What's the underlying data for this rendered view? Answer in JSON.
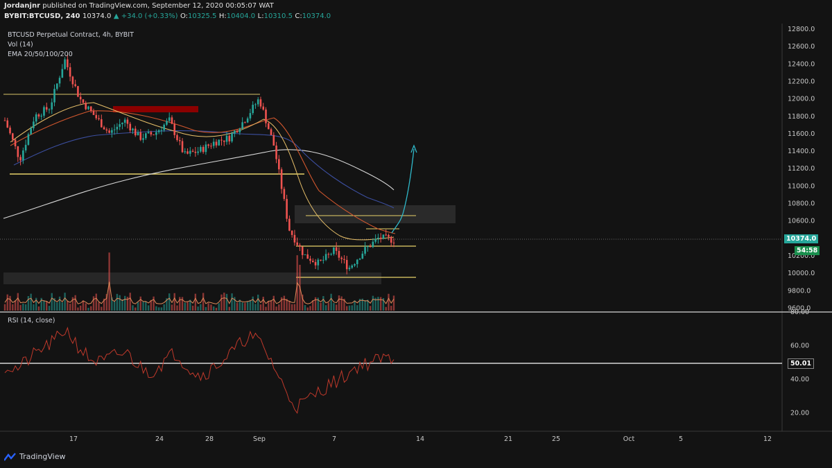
{
  "header": {
    "publisher": "Jordanjnr",
    "published_text": "published on TradingView.com, September 12, 2020 00:05:07 WAT",
    "symbol": "BYBIT:BTCUSD, 240",
    "last": "10374.0",
    "change": "▲ +34.0 (+0.33%)",
    "o_label": "O:",
    "o": "10325.5",
    "h_label": "H:",
    "h": "10404.0",
    "l_label": "L:",
    "l": "10310.5",
    "c_label": "C:",
    "c": "10374.0"
  },
  "legend": {
    "title": "BTCUSD Perpetual Contract, 4h, BYBIT",
    "vol": "Vol (14)",
    "ema": "EMA 20/50/100/200",
    "rsi": "RSI (14, close)"
  },
  "price_axis": {
    "ticks": [
      "12800.0",
      "12600.0",
      "12400.0",
      "12200.0",
      "12000.0",
      "11800.0",
      "11600.0",
      "11400.0",
      "11200.0",
      "11000.0",
      "10800.0",
      "10600.0",
      "10400.0",
      "10200.0",
      "10000.0",
      "9800.0",
      "9600.0"
    ],
    "last_price_tag": "10374.0",
    "countdown_tag": "54:58"
  },
  "rsi_axis": {
    "ticks": [
      "80.00",
      "60.00",
      "40.00",
      "20.00"
    ],
    "value_tag": "50.01"
  },
  "time_axis": {
    "ticks": [
      "17",
      "24",
      "28",
      "Sep",
      "7",
      "14",
      "21",
      "25",
      "Oct",
      "5",
      "12"
    ]
  },
  "footer": {
    "brand": "TradingView"
  },
  "colors": {
    "background": "#131313",
    "up": "#26a69a",
    "down": "#ef5350",
    "ema20": "#e8c06a",
    "ema50": "#d2572e",
    "ema100": "#3c4fa0",
    "ema200": "#d9d9d9",
    "zone_line": "#e8d36a",
    "supply_zone": "#8b0000",
    "projection": "#2fb8c9",
    "rsi_line": "#c0392b"
  },
  "chart_data": {
    "type": "candlestick",
    "symbol": "BYBIT:BTCUSD",
    "timeframe": "4h",
    "ylim": [
      9600,
      12800
    ],
    "rsi_ylim": [
      10,
      80
    ],
    "price_path": [
      [
        11750,
        "Aug 13"
      ],
      [
        11300,
        "Aug 14"
      ],
      [
        11800,
        "Aug 15"
      ],
      [
        11900,
        "Aug 16"
      ],
      [
        12450,
        "Aug 17"
      ],
      [
        12000,
        "Aug 18"
      ],
      [
        11800,
        "Aug 19"
      ],
      [
        11600,
        "Aug 20"
      ],
      [
        11750,
        "Aug 21"
      ],
      [
        11550,
        "Aug 22"
      ],
      [
        11600,
        "Aug 23"
      ],
      [
        11750,
        "Aug 24"
      ],
      [
        11350,
        "Aug 26"
      ],
      [
        11400,
        "Aug 27"
      ],
      [
        11500,
        "Aug 28"
      ],
      [
        11550,
        "Aug 30"
      ],
      [
        11750,
        "Aug 31"
      ],
      [
        12000,
        "Sep 1"
      ],
      [
        11450,
        "Sep 3"
      ],
      [
        10500,
        "Sep 4"
      ],
      [
        10200,
        "Sep 5"
      ],
      [
        10100,
        "Sep 6"
      ],
      [
        10250,
        "Sep 7"
      ],
      [
        10050,
        "Sep 8"
      ],
      [
        10250,
        "Sep 9"
      ],
      [
        10400,
        "Sep 10"
      ],
      [
        10374,
        "Sep 11"
      ]
    ],
    "annotations": {
      "resistance_top": 12030,
      "support_mid": 11130,
      "range_high": 10300,
      "range_low": 9950,
      "projection_target": 11450
    }
  }
}
